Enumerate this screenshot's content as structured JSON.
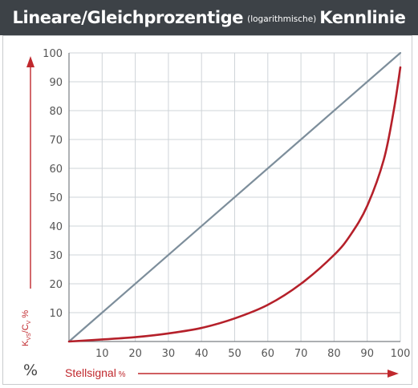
{
  "title": {
    "main_left": "Lineare/Gleichprozentige",
    "small": "(logarithmische)",
    "main_right": "Kennlinie"
  },
  "y_axis_label": {
    "k": "K",
    "k_sub": "VS",
    "slash": "/C",
    "c_sub": "V",
    "unit": " %"
  },
  "x_axis_label": {
    "text": "Stellsignal",
    "unit": " %"
  },
  "percent_sign": "%",
  "colors": {
    "title_bg": "#3d4247",
    "grid": "#cfd4d8",
    "axis": "#7a7f84",
    "linear": "#7d8e9b",
    "equal_percentage": "#b5202a",
    "arrow": "#c0282d"
  },
  "chart_data": {
    "type": "line",
    "title": "Lineare/Gleichprozentige (logarithmische) Kennlinie",
    "xlabel": "Stellsignal %",
    "ylabel": "Kvs/Cv %",
    "xlim": [
      0,
      100
    ],
    "ylim": [
      0,
      100
    ],
    "x_ticks": [
      10,
      20,
      30,
      40,
      50,
      60,
      70,
      80,
      90,
      100
    ],
    "y_ticks": [
      10,
      20,
      30,
      40,
      50,
      60,
      70,
      80,
      90,
      100
    ],
    "grid": true,
    "series": [
      {
        "x": [
          0,
          100
        ],
        "y": [
          0,
          100
        ]
      },
      {
        "x": [
          0,
          10,
          20,
          30,
          40,
          50,
          60,
          70,
          80,
          85,
          90,
          95,
          98,
          100
        ],
        "y": [
          0,
          0.7,
          1.5,
          2.8,
          4.7,
          8,
          12.7,
          20,
          30,
          37,
          47,
          63,
          80,
          95
        ]
      }
    ]
  }
}
